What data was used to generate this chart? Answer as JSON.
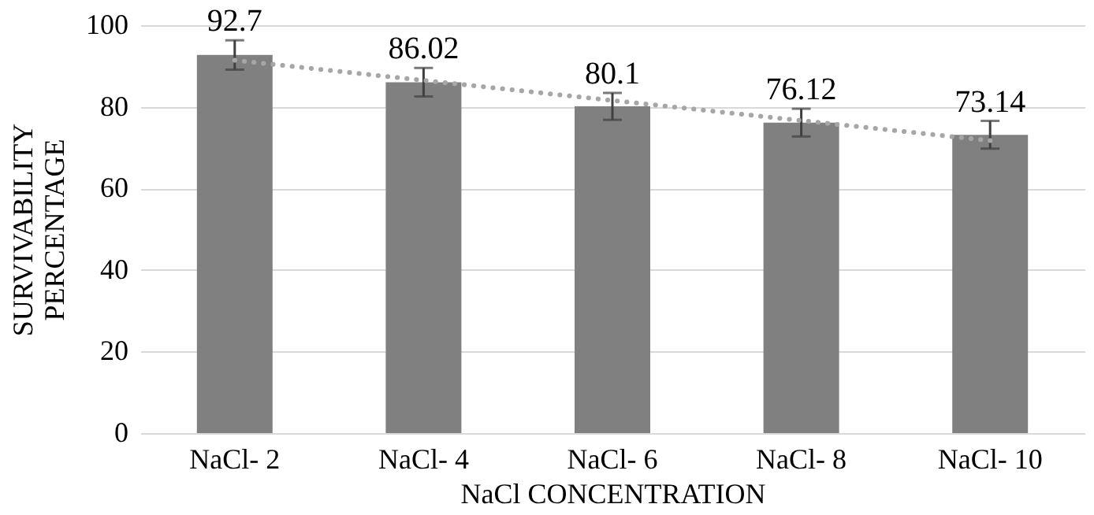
{
  "chart_data": {
    "type": "bar",
    "xlabel": "NaCl CONCENTRATION",
    "ylabel": "SURVIVABILITY PERCENTAGE",
    "categories": [
      "NaCl- 2",
      "NaCl- 4",
      "NaCl- 6",
      "NaCl- 8",
      "NaCl- 10"
    ],
    "series": [
      {
        "color": "#808080",
        "values": [
          92.7,
          86.02,
          80.1,
          76.12,
          73.14
        ],
        "errors": [
          3.6,
          3.5,
          3.3,
          3.4,
          3.4
        ],
        "value_labels": [
          "92.7",
          "86.02",
          "80.1",
          "76.12",
          "73.14"
        ]
      },
      {
        "type": "line",
        "color": "#a6a6a6",
        "line_style": "dotted",
        "marker": "none",
        "x": [
          "NaCl- 2",
          "NaCl- 10"
        ],
        "values": [
          91.4,
          71.7
        ]
      }
    ],
    "ylim": [
      0,
      100
    ],
    "yticks": [
      0,
      20,
      40,
      60,
      80,
      100
    ],
    "grid": "y"
  }
}
